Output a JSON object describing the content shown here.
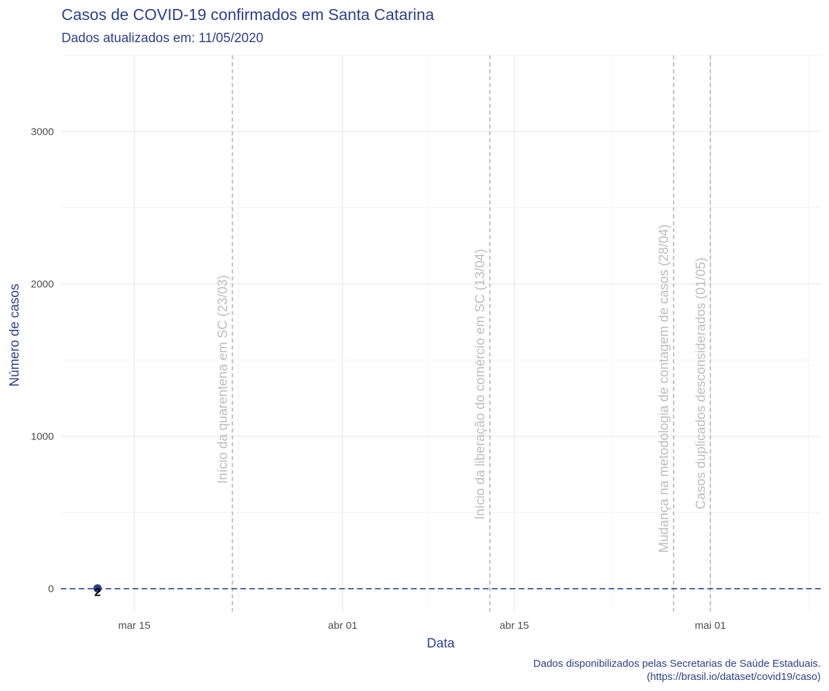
{
  "header": {
    "title": "Casos de COVID-19 confirmados em Santa Catarina",
    "subtitle": "Dados atualizados em:  11/05/2020"
  },
  "footer": {
    "caption_line1": "Dados disponibilizados pelas Secretarias de Saúde Estaduais.",
    "caption_line2": "(https://brasil.io/dataset/covid19/caso)"
  },
  "chart_data": {
    "type": "scatter",
    "title": "Casos de COVID-19 confirmados em Santa Catarina",
    "subtitle": "Dados atualizados em:  11/05/2020",
    "xlabel": "Data",
    "ylabel": "Número de casos",
    "x_range": [
      "2020-03-09",
      "2020-05-10"
    ],
    "ylim": [
      -150,
      3500
    ],
    "x_ticks": [
      {
        "date": "2020-03-15",
        "label": "mar 15"
      },
      {
        "date": "2020-04-01",
        "label": "abr 01"
      },
      {
        "date": "2020-04-15",
        "label": "abr 15"
      },
      {
        "date": "2020-05-01",
        "label": "mai 01"
      }
    ],
    "y_ticks": [
      0,
      1000,
      2000,
      3000
    ],
    "grid": true,
    "points": [
      {
        "x": "2020-03-12",
        "y": 2,
        "label": "2"
      }
    ],
    "hline": {
      "y": 0,
      "style": "dashed",
      "color": "#2b3f8c"
    },
    "annotations": [
      {
        "date": "2020-03-23",
        "text": "Início da quarentena em SC (23/03)"
      },
      {
        "date": "2020-04-13",
        "text": "Início da liberação do comércio em SC (13/04)"
      },
      {
        "date": "2020-04-28",
        "text": "Mudança na metodologia de contagem de casos (28/04)"
      },
      {
        "date": "2020-05-01",
        "text": "Casos duplicados desconsiderados (01/05)"
      }
    ],
    "colors": {
      "point": "#2b3f8c",
      "accent": "#2b3f8c",
      "annotation": "#bdbdbd",
      "grid": "#ebebeb"
    }
  }
}
